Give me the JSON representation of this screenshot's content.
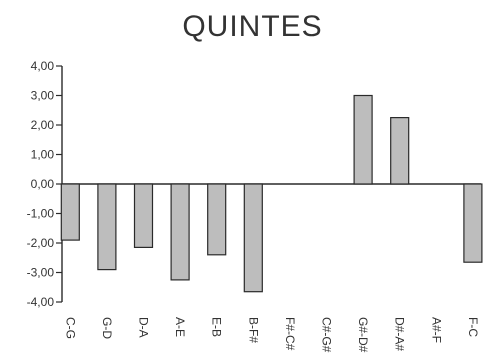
{
  "chart_data": {
    "type": "bar",
    "title": "QUINTES",
    "xlabel": "",
    "ylabel": "",
    "categories": [
      "C-G",
      "G-D",
      "D-A",
      "A-E",
      "E-B",
      "B-F#",
      "F#-C#",
      "C#-G#",
      "G#-D#",
      "D#-A#",
      "A#-F",
      "F-C"
    ],
    "values": [
      -1.9,
      -2.9,
      -2.15,
      -3.25,
      -2.4,
      -3.65,
      0,
      0,
      3.0,
      2.25,
      0,
      -2.65
    ],
    "ylim": [
      -4.0,
      4.0
    ],
    "yticks": [
      "4,00",
      "3,00",
      "2,00",
      "1,00",
      "0,00",
      "-1,00",
      "-2,00",
      "-3,00",
      "-4,00"
    ],
    "ytick_values": [
      4,
      3,
      2,
      1,
      0,
      -1,
      -2,
      -3,
      -4
    ],
    "grid": false,
    "colors": {
      "bar_fill": "#bdbdbd",
      "bar_stroke": "#2a2a2a",
      "axis": "#2a2a2a"
    }
  }
}
